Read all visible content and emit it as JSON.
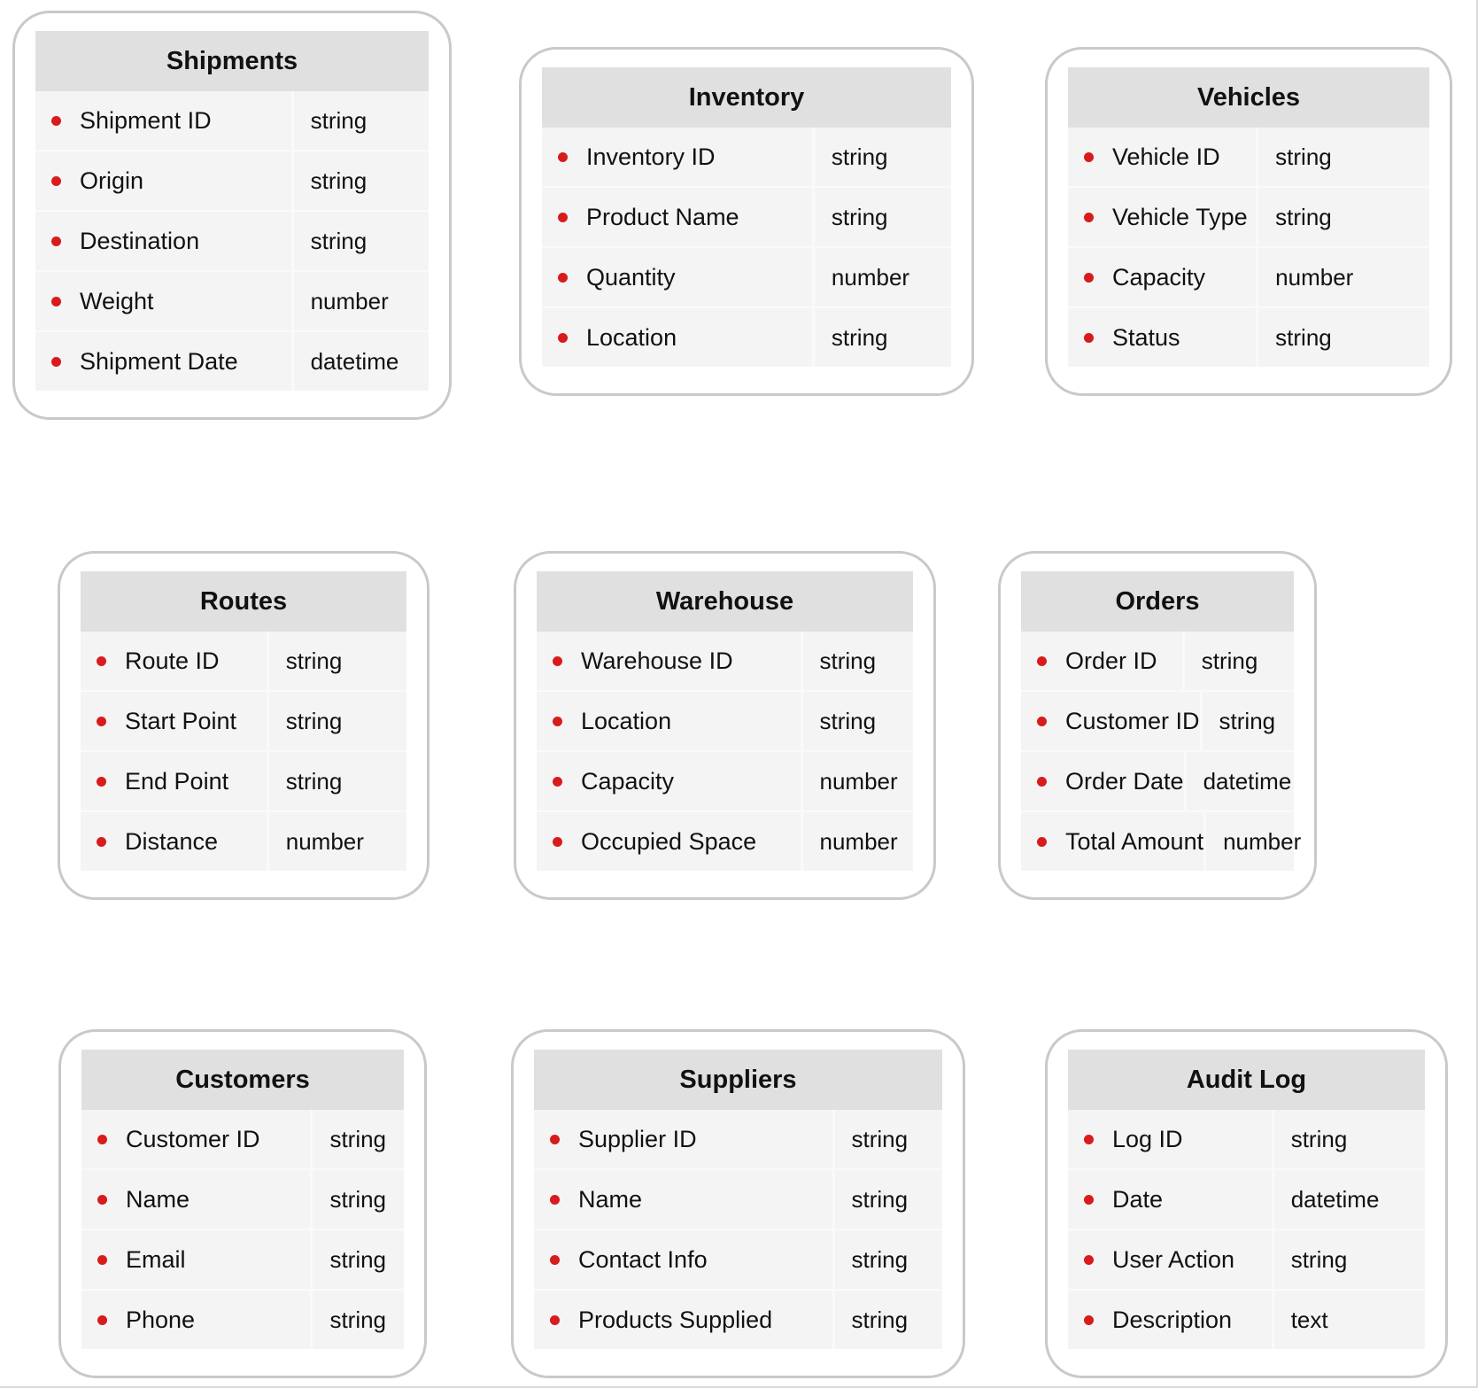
{
  "diagram": {
    "tables": [
      {
        "title": "Shipments",
        "fields": [
          {
            "name": "Shipment ID",
            "type": "string"
          },
          {
            "name": "Origin",
            "type": "string"
          },
          {
            "name": "Destination",
            "type": "string"
          },
          {
            "name": "Weight",
            "type": "number"
          },
          {
            "name": "Shipment Date",
            "type": "datetime"
          }
        ]
      },
      {
        "title": "Inventory",
        "fields": [
          {
            "name": "Inventory ID",
            "type": "string"
          },
          {
            "name": "Product Name",
            "type": "string"
          },
          {
            "name": "Quantity",
            "type": "number"
          },
          {
            "name": "Location",
            "type": "string"
          }
        ]
      },
      {
        "title": "Vehicles",
        "fields": [
          {
            "name": "Vehicle ID",
            "type": "string"
          },
          {
            "name": "Vehicle Type",
            "type": "string"
          },
          {
            "name": "Capacity",
            "type": "number"
          },
          {
            "name": "Status",
            "type": "string"
          }
        ]
      },
      {
        "title": "Routes",
        "fields": [
          {
            "name": "Route ID",
            "type": "string"
          },
          {
            "name": "Start Point",
            "type": "string"
          },
          {
            "name": "End Point",
            "type": "string"
          },
          {
            "name": "Distance",
            "type": "number"
          }
        ]
      },
      {
        "title": "Warehouse",
        "fields": [
          {
            "name": "Warehouse ID",
            "type": "string"
          },
          {
            "name": "Location",
            "type": "string"
          },
          {
            "name": "Capacity",
            "type": "number"
          },
          {
            "name": "Occupied Space",
            "type": "number"
          }
        ]
      },
      {
        "title": "Orders",
        "fields": [
          {
            "name": "Order ID",
            "type": "string"
          },
          {
            "name": "Customer ID",
            "type": "string"
          },
          {
            "name": "Order Date",
            "type": "datetime"
          },
          {
            "name": "Total Amount",
            "type": "number"
          }
        ]
      },
      {
        "title": "Customers",
        "fields": [
          {
            "name": "Customer ID",
            "type": "string"
          },
          {
            "name": "Name",
            "type": "string"
          },
          {
            "name": "Email",
            "type": "string"
          },
          {
            "name": "Phone",
            "type": "string"
          }
        ]
      },
      {
        "title": "Suppliers",
        "fields": [
          {
            "name": "Supplier ID",
            "type": "string"
          },
          {
            "name": "Name",
            "type": "string"
          },
          {
            "name": "Contact Info",
            "type": "string"
          },
          {
            "name": "Products Supplied",
            "type": "string"
          }
        ]
      },
      {
        "title": "Audit Log",
        "fields": [
          {
            "name": "Log ID",
            "type": "string"
          },
          {
            "name": "Date",
            "type": "datetime"
          },
          {
            "name": "User Action",
            "type": "string"
          },
          {
            "name": "Description",
            "type": "text"
          }
        ]
      }
    ],
    "colors": {
      "header_bg": "#e0e0e0",
      "body_bg": "#f4f4f4",
      "bullet": "#d81b1b",
      "card_border": "#c9c9c9",
      "canvas_border": "#d9d9d9",
      "text": "#111111"
    }
  }
}
